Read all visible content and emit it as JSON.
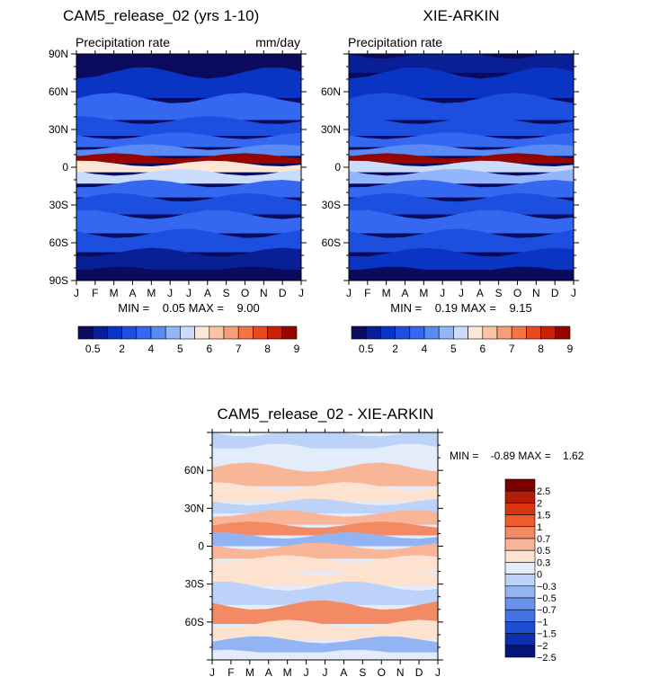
{
  "chart_data": [
    {
      "type": "heatmap",
      "title": "CAM5_release_02 (yrs 1-10)",
      "subtitle": "Precipitation rate",
      "units": "mm/day",
      "x_ticks": [
        "J",
        "F",
        "M",
        "A",
        "M",
        "J",
        "J",
        "A",
        "S",
        "O",
        "N",
        "D",
        "J"
      ],
      "y_ticks": [
        "90N",
        "60N",
        "30N",
        "0",
        "30S",
        "60S",
        "90S"
      ],
      "xlim": [
        0,
        12
      ],
      "ylim": [
        -90,
        90
      ],
      "stats": "MIN =    0.05 MAX =    9.00",
      "bands": [
        {
          "lat": 85,
          "value": 0.5
        },
        {
          "lat": 65,
          "value": 1.5
        },
        {
          "lat": 45,
          "value": 2.2
        },
        {
          "lat": 30,
          "value": 2.0
        },
        {
          "lat": 20,
          "value": 2.3
        },
        {
          "lat": 12,
          "value": 3.6
        },
        {
          "lat": 6,
          "value": 8.6
        },
        {
          "lat": 0,
          "value": 5.2
        },
        {
          "lat": -8,
          "value": 4.7
        },
        {
          "lat": -18,
          "value": 2.6
        },
        {
          "lat": -30,
          "value": 1.8
        },
        {
          "lat": -45,
          "value": 2.4
        },
        {
          "lat": -60,
          "value": 2.0
        },
        {
          "lat": -75,
          "value": 1.0
        },
        {
          "lat": -88,
          "value": 0.3
        }
      ],
      "colorbar_labels": [
        "0.5",
        "2",
        "4",
        "5",
        "6",
        "7",
        "8",
        "9"
      ]
    },
    {
      "type": "heatmap",
      "title": "XIE-ARKIN",
      "subtitle": "Precipitation rate",
      "x_ticks": [
        "J",
        "F",
        "M",
        "A",
        "M",
        "J",
        "J",
        "A",
        "S",
        "O",
        "N",
        "D",
        "J"
      ],
      "y_ticks": [
        "60N",
        "30N",
        "0",
        "30S",
        "60S"
      ],
      "xlim": [
        0,
        12
      ],
      "ylim": [
        -90,
        90
      ],
      "stats": "MIN =    0.19 MAX =    9.15",
      "bands": [
        {
          "lat": 85,
          "value": 0.6
        },
        {
          "lat": 65,
          "value": 1.4
        },
        {
          "lat": 45,
          "value": 2.0
        },
        {
          "lat": 30,
          "value": 1.8
        },
        {
          "lat": 20,
          "value": 2.1
        },
        {
          "lat": 12,
          "value": 3.4
        },
        {
          "lat": 6,
          "value": 8.8
        },
        {
          "lat": 0,
          "value": 5.0
        },
        {
          "lat": -8,
          "value": 4.5
        },
        {
          "lat": -18,
          "value": 2.4
        },
        {
          "lat": -30,
          "value": 1.6
        },
        {
          "lat": -45,
          "value": 2.6
        },
        {
          "lat": -60,
          "value": 1.8
        },
        {
          "lat": -75,
          "value": 1.2
        },
        {
          "lat": -88,
          "value": 0.4
        }
      ],
      "colorbar_labels": [
        "0.5",
        "2",
        "4",
        "5",
        "6",
        "7",
        "8",
        "9"
      ]
    },
    {
      "type": "heatmap",
      "title": "CAM5_release_02 - XIE-ARKIN",
      "x_ticks": [
        "J",
        "F",
        "M",
        "A",
        "M",
        "J",
        "J",
        "A",
        "S",
        "O",
        "N",
        "D",
        "J"
      ],
      "y_ticks": [
        "60N",
        "30N",
        "0",
        "30S",
        "60S"
      ],
      "xlim": [
        0,
        12
      ],
      "ylim": [
        -90,
        90
      ],
      "stats": "MIN =    -0.89 MAX =    1.62",
      "bands": [
        {
          "lat": 85,
          "value": -0.2
        },
        {
          "lat": 70,
          "value": 0.2
        },
        {
          "lat": 55,
          "value": 0.5
        },
        {
          "lat": 40,
          "value": 0.3
        },
        {
          "lat": 30,
          "value": -0.2
        },
        {
          "lat": 22,
          "value": 0.5
        },
        {
          "lat": 12,
          "value": 0.9
        },
        {
          "lat": 5,
          "value": -0.5
        },
        {
          "lat": -5,
          "value": 0.6
        },
        {
          "lat": -15,
          "value": 0.4
        },
        {
          "lat": -25,
          "value": 0.3
        },
        {
          "lat": -38,
          "value": -0.2
        },
        {
          "lat": -55,
          "value": 0.9
        },
        {
          "lat": -68,
          "value": 0.3
        },
        {
          "lat": -80,
          "value": -0.4
        },
        {
          "lat": -88,
          "value": 0.1
        }
      ],
      "colorbar_labels": [
        "2.5",
        "2",
        "1.5",
        "1",
        "0.7",
        "0.5",
        "0.3",
        "0",
        "−0.3",
        "−0.5",
        "−0.7",
        "−1",
        "−1.5",
        "−2",
        "−2.5"
      ]
    }
  ],
  "colors": {
    "precip_scale": [
      "#0b0b5e",
      "#081f96",
      "#0a35c4",
      "#1c4fe0",
      "#3568f0",
      "#5a8af5",
      "#93b5fb",
      "#cadcfb",
      "#fde8d8",
      "#fbc3a4",
      "#f79e78",
      "#f27447",
      "#e64a20",
      "#c92008",
      "#950500"
    ],
    "diff_scale": [
      "#7a0000",
      "#b31d06",
      "#d7360f",
      "#ee5c2c",
      "#f48a63",
      "#f8b597",
      "#fde2d0",
      "#e2ecfb",
      "#bcd2f8",
      "#93b4f3",
      "#6b92ec",
      "#4272e3",
      "#1e4fd2",
      "#0c2fae",
      "#05157a"
    ]
  }
}
